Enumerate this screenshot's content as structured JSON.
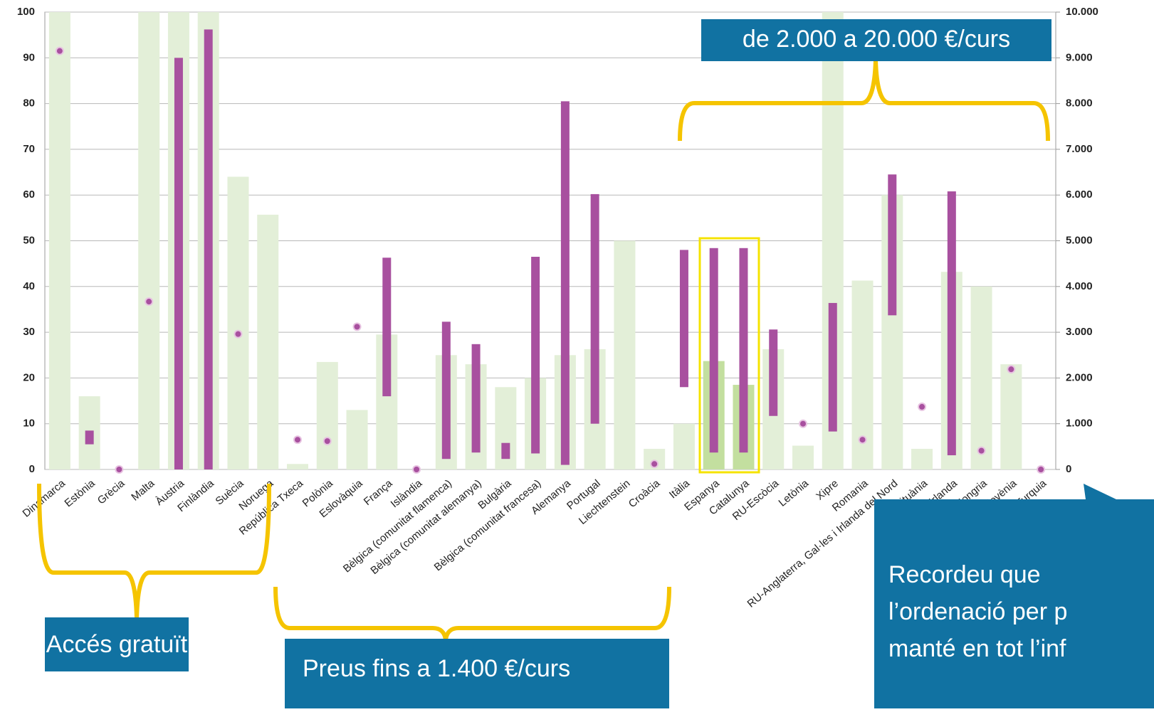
{
  "chart_data": {
    "type": "bar-range",
    "categories": [
      "Dinamarca",
      "Estònia",
      "Grècia",
      "Malta",
      "Àustria",
      "Finlàndia",
      "Suècia",
      "Noruega",
      "República Txeca",
      "Polònia",
      "Eslovàquia",
      "França",
      "Islàndia",
      "Bèlgica (comunitat flamenca)",
      "Bèlgica (comunitat alemanya)",
      "Bulgària",
      "Bèlgica (comunitat francesa)",
      "Alemanya",
      "Portugal",
      "Liechtenstein",
      "Croàcia",
      "Itàlia",
      "Espanya",
      "Catalunya",
      "RU-Escòcia",
      "Letònia",
      "Xipre",
      "Romania",
      "RU-Anglaterra, Gal·les i Irlanda del Nord",
      "Lituània",
      "Irlanda",
      "Hongria",
      "Eslovènia",
      "Turquia"
    ],
    "bars": {
      "values": [
        100,
        16,
        0,
        100,
        100,
        100,
        64,
        55.7,
        1.2,
        23.5,
        13,
        29.5,
        0,
        25,
        23,
        18,
        20,
        25,
        26.3,
        50,
        4.5,
        10,
        23.7,
        18.5,
        26.3,
        5.2,
        100,
        41.3,
        60,
        4.5,
        43.2,
        40,
        23,
        0
      ],
      "colors": [
        "#e3efd8",
        "#e3efd8",
        "#e3efd8",
        "#e3efd8",
        "#e3efd8",
        "#e3efd8",
        "#e3efd8",
        "#e3efd8",
        "#e3efd8",
        "#e3efd8",
        "#e3efd8",
        "#e3efd8",
        "#e3efd8",
        "#e3efd8",
        "#e3efd8",
        "#e3efd8",
        "#e3efd8",
        "#e3efd8",
        "#e3efd8",
        "#e3efd8",
        "#e3efd8",
        "#e3efd8",
        "#c3df9f",
        "#c3df9f",
        "#e3efd8",
        "#e3efd8",
        "#e3efd8",
        "#e3efd8",
        "#e3efd8",
        "#e3efd8",
        "#e3efd8",
        "#e3efd8",
        "#e3efd8",
        "#e3efd8"
      ]
    },
    "ranges": {
      "axis": "y2",
      "color": "#a8509f",
      "min": [
        9150,
        550,
        0,
        3670,
        0,
        0,
        2960,
        null,
        650,
        620,
        3120,
        1600,
        0,
        230,
        370,
        230,
        350,
        100,
        1000,
        null,
        120,
        1800,
        370,
        370,
        1170,
        1000,
        830,
        650,
        3370,
        1370,
        310,
        410,
        2190,
        0
      ],
      "max": [
        9150,
        850,
        0,
        3670,
        9000,
        9620,
        2960,
        null,
        650,
        620,
        3120,
        4630,
        0,
        3230,
        2740,
        580,
        4650,
        8050,
        6020,
        null,
        120,
        4800,
        4840,
        4840,
        3060,
        1000,
        3640,
        650,
        6450,
        1370,
        6080,
        410,
        2190,
        0
      ]
    },
    "ylim": [
      0,
      100
    ],
    "yticks": [
      0,
      10,
      20,
      30,
      40,
      50,
      60,
      70,
      80,
      90,
      100
    ],
    "y2lim": [
      0,
      10000
    ],
    "y2ticks": [
      0,
      {
        "value": 1000,
        "label": "1.000"
      },
      {
        "value": 2000,
        "label": "2.000"
      },
      {
        "value": 3000,
        "label": "3.000"
      },
      {
        "value": 4000,
        "label": "4.000"
      },
      {
        "value": 5000,
        "label": "5.000"
      },
      {
        "value": 6000,
        "label": "6.000"
      },
      {
        "value": 7000,
        "label": "7.000"
      },
      {
        "value": 8000,
        "label": "8.000"
      },
      {
        "value": 9000,
        "label": "9.000"
      },
      {
        "value": 10000,
        "label": "10.000"
      }
    ],
    "grid": true,
    "annotations": {
      "top": "de 2.000 a 20.000 €/curs",
      "free": "Accés gratuït",
      "low": "Preus fins a  1.400 €/curs",
      "note": [
        "Recordeu que",
        "l’ordenació per p",
        "manté en tot l’inf"
      ]
    }
  }
}
